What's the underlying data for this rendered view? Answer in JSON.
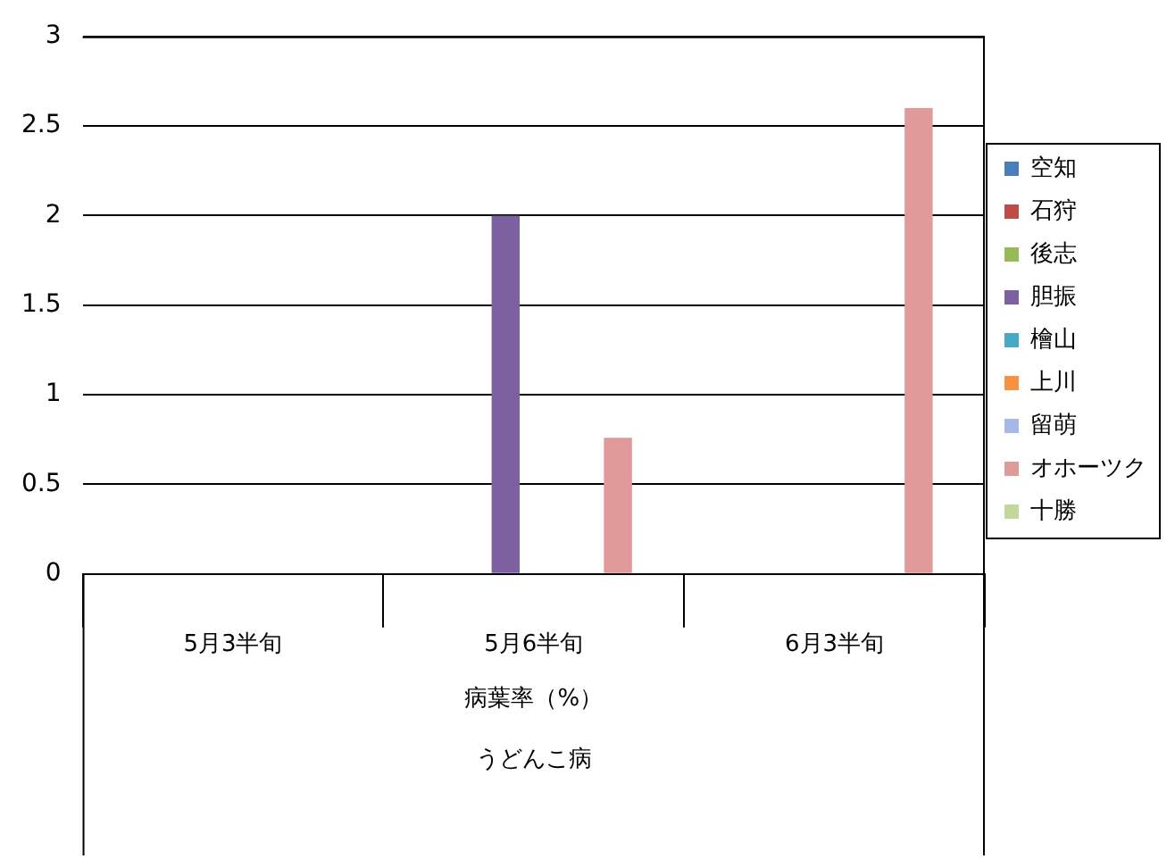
{
  "chart_data": {
    "type": "bar",
    "categories": [
      "5月3半旬",
      "5月6半旬",
      "6月3半旬"
    ],
    "series": [
      {
        "name": "空知",
        "color": "#4a7ebb",
        "values": [
          null,
          null,
          null
        ]
      },
      {
        "name": "石狩",
        "color": "#be4b48",
        "values": [
          null,
          null,
          null
        ]
      },
      {
        "name": "後志",
        "color": "#98b954",
        "values": [
          null,
          null,
          null
        ]
      },
      {
        "name": "胆振",
        "color": "#7d60a0",
        "values": [
          null,
          2,
          null
        ]
      },
      {
        "name": "檜山",
        "color": "#46aac5",
        "values": [
          null,
          null,
          null
        ]
      },
      {
        "name": "上川",
        "color": "#f69240",
        "values": [
          null,
          null,
          null
        ]
      },
      {
        "name": "留萌",
        "color": "#a7b9e3",
        "values": [
          null,
          null,
          null
        ]
      },
      {
        "name": "オホーツク",
        "color": "#e09a9a",
        "values": [
          null,
          0.76,
          2.6
        ]
      },
      {
        "name": "十勝",
        "color": "#c3d69b",
        "values": [
          null,
          null,
          null
        ]
      }
    ],
    "xlabel": "病葉率（%）",
    "annotations": [
      "うどんこ病"
    ],
    "ylim": [
      0,
      3
    ],
    "yticks": [
      0,
      0.5,
      1,
      1.5,
      2,
      2.5,
      3
    ],
    "grid": "y",
    "legend": "right"
  }
}
